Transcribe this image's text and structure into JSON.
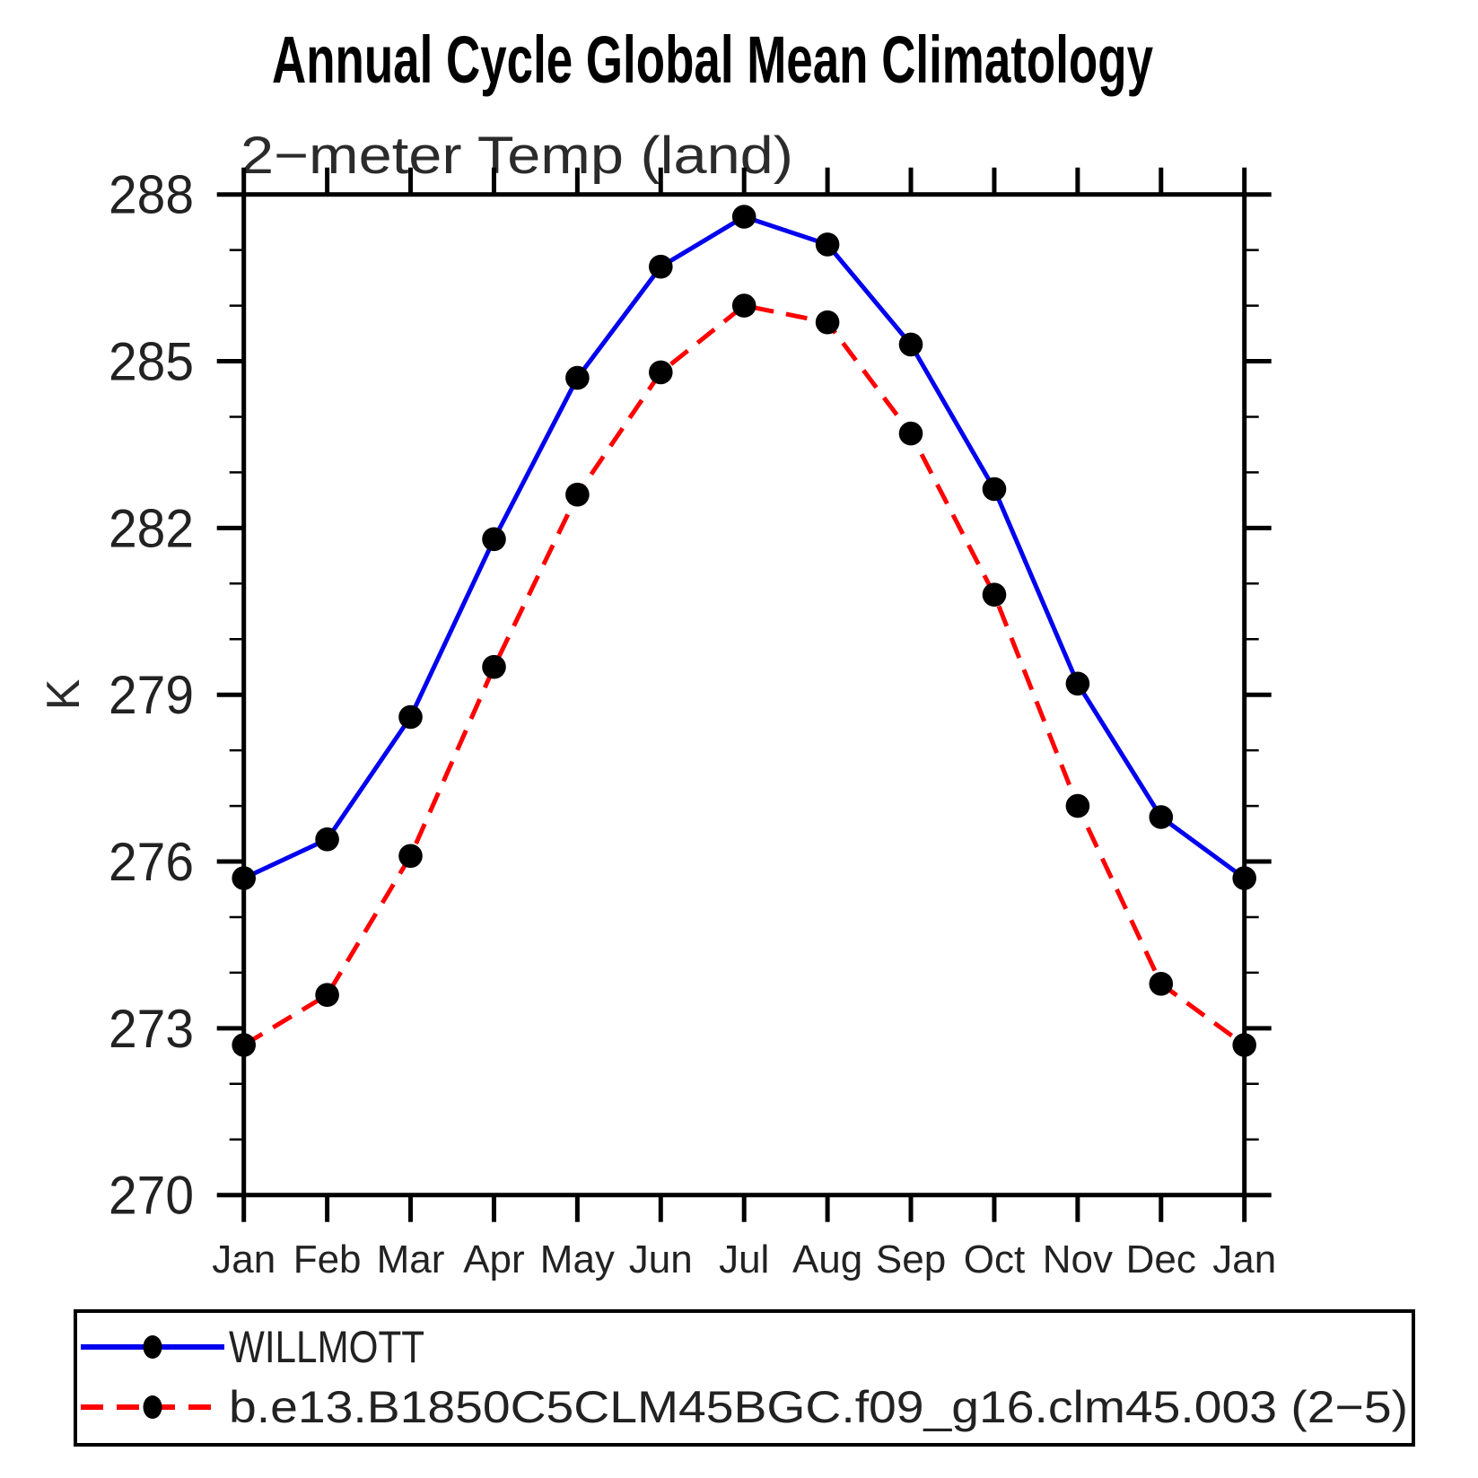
{
  "title": "Annual Cycle Global Mean Climatology",
  "subtitle": "2−meter Temp (land)",
  "yaxis": {
    "label": "K",
    "tick_labels": [
      "288",
      "285",
      "282",
      "279",
      "276",
      "273",
      "270"
    ]
  },
  "xaxis": {
    "months": [
      "Jan",
      "Feb",
      "Mar",
      "Apr",
      "May",
      "Jun",
      "Jul",
      "Aug",
      "Sep",
      "Oct",
      "Nov",
      "Dec",
      "Jan"
    ]
  },
  "legend": {
    "items": [
      {
        "label": "WILLMOTT",
        "color": "#0000ee",
        "style": "solid"
      },
      {
        "label": "b.e13.B1850C5CLM45BGC.f09_g16.clm45.003 (2−5)",
        "color": "#ff0000",
        "style": "dashed"
      }
    ]
  },
  "chart_data": {
    "type": "line",
    "title": "Annual Cycle Global Mean Climatology",
    "subtitle": "2-meter Temp (land)",
    "categories": [
      "Jan",
      "Feb",
      "Mar",
      "Apr",
      "May",
      "Jun",
      "Jul",
      "Aug",
      "Sep",
      "Oct",
      "Nov",
      "Dec",
      "Jan"
    ],
    "series": [
      {
        "name": "WILLMOTT",
        "color": "#0000ee",
        "line_style": "solid",
        "marker": "circle",
        "values": [
          275.7,
          276.4,
          278.6,
          281.8,
          284.7,
          286.7,
          287.6,
          287.1,
          285.3,
          282.7,
          279.2,
          276.8,
          275.7
        ]
      },
      {
        "name": "b.e13.B1850C5CLM45BGC.f09_g16.clm45.003 (2-5)",
        "color": "#ff0000",
        "line_style": "dashed",
        "marker": "circle",
        "values": [
          272.7,
          273.6,
          276.1,
          279.5,
          282.6,
          284.8,
          286.0,
          285.7,
          283.7,
          280.8,
          277.0,
          273.8,
          272.7
        ]
      }
    ],
    "xlabel": "",
    "ylabel": "K",
    "ylim": [
      270,
      288
    ],
    "ytick_major": 3,
    "ytick_minor": 1,
    "grid": false,
    "legend_position": "bottom",
    "marker_color": "#000000"
  }
}
